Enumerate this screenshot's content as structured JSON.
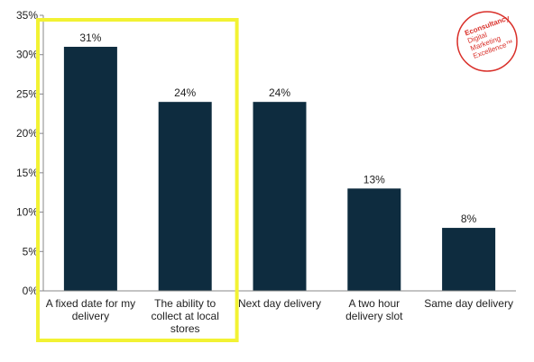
{
  "chart_data": {
    "type": "bar",
    "categories": [
      [
        "A fixed date for my",
        "delivery"
      ],
      [
        "The ability to",
        "collect at local",
        "stores"
      ],
      [
        "Next day delivery"
      ],
      [
        "A two hour",
        "delivery slot"
      ],
      [
        "Same day delivery"
      ]
    ],
    "values": [
      31,
      24,
      24,
      13,
      8
    ],
    "data_labels": [
      "31%",
      "24%",
      "24%",
      "13%",
      "8%"
    ],
    "y_ticks": [
      "0%",
      "5%",
      "10%",
      "15%",
      "20%",
      "25%",
      "30%",
      "35%"
    ],
    "ylim": [
      0,
      35
    ],
    "grid": false,
    "highlight": {
      "categories": [
        0,
        1
      ],
      "color": "#f2f233"
    },
    "bar_color": "#0e2c3f"
  },
  "brand": {
    "lines": [
      "Econsultancy",
      "Digital",
      "Marketing",
      "Excellence™"
    ],
    "color": "#d9302a"
  }
}
